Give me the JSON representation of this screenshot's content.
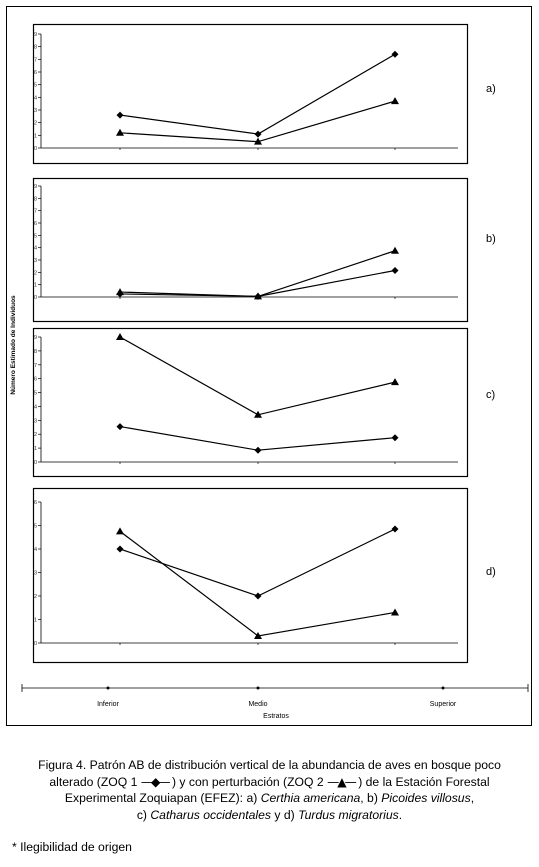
{
  "chart_data": {
    "type": "line",
    "ylabel": "Número Estimado de Individuos",
    "xlabel": "Estratos",
    "categories": [
      "Inferior",
      "Medio",
      "Superior"
    ],
    "panels": [
      {
        "label": "a)",
        "ylim": [
          0,
          9
        ],
        "yticks": [
          "0",
          "1",
          "2",
          "3",
          "4",
          "5",
          "6",
          "7",
          "8",
          "9"
        ],
        "series": [
          {
            "marker": "diamond",
            "values": [
              2.6,
              1.1,
              7.4
            ]
          },
          {
            "marker": "triangle",
            "values": [
              1.2,
              0.5,
              3.7
            ]
          }
        ]
      },
      {
        "label": "b)",
        "ylim": [
          0,
          9
        ],
        "yticks": [
          "0",
          "1",
          "2",
          "3",
          "4",
          "5",
          "6",
          "7",
          "8",
          "9"
        ],
        "series": [
          {
            "marker": "diamond",
            "values": [
              0.25,
              0.05,
              2.15
            ]
          },
          {
            "marker": "triangle",
            "values": [
              0.4,
              0.05,
              3.75
            ]
          }
        ]
      },
      {
        "label": "c)",
        "ylim": [
          0,
          9
        ],
        "yticks": [
          "0",
          "1",
          "2",
          "3",
          "4",
          "5",
          "6",
          "7",
          "8",
          "9"
        ],
        "series": [
          {
            "marker": "diamond",
            "values": [
              2.55,
              0.85,
              1.75
            ]
          },
          {
            "marker": "triangle",
            "values": [
              9.0,
              3.4,
              5.75
            ]
          }
        ]
      },
      {
        "label": "d)",
        "ylim": [
          0,
          6
        ],
        "yticks": [
          "0",
          "1",
          "2",
          "3",
          "4",
          "5",
          "6"
        ],
        "series": [
          {
            "marker": "diamond",
            "values": [
              4.0,
              2.0,
              4.85
            ]
          },
          {
            "marker": "triangle",
            "values": [
              4.75,
              0.3,
              1.3
            ]
          }
        ]
      }
    ]
  },
  "caption": {
    "line1": "Figura 4. Patrón AB de distribución vertical de la abundancia de aves en bosque poco",
    "line2_a": "alterado (ZOQ 1 ",
    "line2_sym1": "—◆—",
    "line2_b": " ) y con perturbación (ZOQ 2 ",
    "line2_sym2": "—▲—",
    "line2_c": " ) de la Estación Forestal",
    "line3_a": "Experimental Zoquiapan (EFEZ): a) ",
    "line3_sp1": "Certhia americana",
    "line3_b": ", b) ",
    "line3_sp2": "Picoides villosus",
    "line3_c": ",",
    "line4_a": "c) ",
    "line4_sp3": "Catharus occidentales",
    "line4_b": " y d) ",
    "line4_sp4": "Turdus migratorius",
    "line4_c": "."
  },
  "note": "* Ilegibilidad de origen"
}
